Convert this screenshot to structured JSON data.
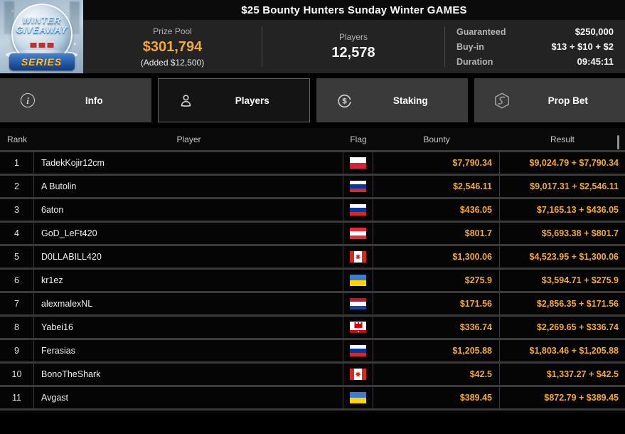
{
  "title": "$25 Bounty Hunters Sunday Winter GAMES",
  "logo": {
    "line1": "WINTER",
    "line2": "GIVEAWAY",
    "series": "SERIES"
  },
  "stats": {
    "prize_pool_label": "Prize Pool",
    "prize_pool_value": "$301,794",
    "prize_pool_added": "(Added $12,500)",
    "players_label": "Players",
    "players_value": "12,578",
    "details": [
      {
        "label": "Guaranteed",
        "value": "$250,000"
      },
      {
        "label": "Buy-in",
        "value": "$13 + $10 + $2"
      },
      {
        "label": "Duration",
        "value": "09:45:11"
      }
    ]
  },
  "tabs": [
    {
      "label": "Info",
      "icon": "info-icon",
      "selected": false
    },
    {
      "label": "Players",
      "icon": "players-icon",
      "selected": true
    },
    {
      "label": "Staking",
      "icon": "staking-icon",
      "selected": false
    },
    {
      "label": "Prop Bet",
      "icon": "prop-bet-icon",
      "selected": false
    }
  ],
  "table": {
    "columns": [
      "Rank",
      "Player",
      "Flag",
      "Bounty",
      "Result"
    ],
    "rows": [
      {
        "rank": "1",
        "player": "TadekKojir12cm",
        "flag": "poland",
        "bounty": "$7,790.34",
        "result": "$9,024.79 + $7,790.34"
      },
      {
        "rank": "2",
        "player": "A Butolin",
        "flag": "russia",
        "bounty": "$2,546.11",
        "result": "$9,017.31 + $2,546.11"
      },
      {
        "rank": "3",
        "player": "6aton",
        "flag": "russia",
        "bounty": "$436.05",
        "result": "$7,165.13 + $436.05"
      },
      {
        "rank": "4",
        "player": "GoD_LeFt420",
        "flag": "austria",
        "bounty": "$801.7",
        "result": "$5,693.38 + $801.7"
      },
      {
        "rank": "5",
        "player": "D0LLABILL420",
        "flag": "canada",
        "bounty": "$1,300.06",
        "result": "$4,523.95 + $1,300.06"
      },
      {
        "rank": "6",
        "player": "kr1ez",
        "flag": "ukraine",
        "bounty": "$275.9",
        "result": "$3,594.71 + $275.9"
      },
      {
        "rank": "7",
        "player": "alexmalexNL",
        "flag": "netherlands",
        "bounty": "$171.56",
        "result": "$2,856.35 + $171.56"
      },
      {
        "rank": "8",
        "player": "Yabei16",
        "flag": "gibraltar",
        "bounty": "$336.74",
        "result": "$2,269.65 + $336.74"
      },
      {
        "rank": "9",
        "player": "Ferasias",
        "flag": "russia",
        "bounty": "$1,205.88",
        "result": "$1,803.46 + $1,205.88"
      },
      {
        "rank": "10",
        "player": "BonoTheShark",
        "flag": "canada",
        "bounty": "$42.5",
        "result": "$1,337.27 + $42.5"
      },
      {
        "rank": "11",
        "player": "Avgast",
        "flag": "ukraine",
        "bounty": "$389.45",
        "result": "$872.79 + $389.45"
      }
    ]
  },
  "colors": {
    "accent_gold": "#f2a83d",
    "stats_bg": "#232323",
    "tab_bg": "#3a3a3a",
    "selected_tab_bg": "#141414",
    "row_bg": "#050505",
    "separator": "#3b3b3b"
  }
}
